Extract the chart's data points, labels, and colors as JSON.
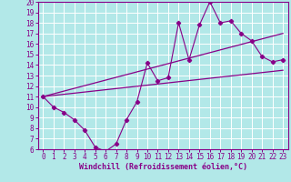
{
  "xlabel": "Windchill (Refroidissement éolien,°C)",
  "bg_color": "#b2e8e8",
  "grid_color": "#ffffff",
  "line_color": "#880088",
  "xlim": [
    -0.5,
    23.5
  ],
  "ylim": [
    6,
    20
  ],
  "xticks": [
    0,
    1,
    2,
    3,
    4,
    5,
    6,
    7,
    8,
    9,
    10,
    11,
    12,
    13,
    14,
    15,
    16,
    17,
    18,
    19,
    20,
    21,
    22,
    23
  ],
  "yticks": [
    6,
    7,
    8,
    9,
    10,
    11,
    12,
    13,
    14,
    15,
    16,
    17,
    18,
    19,
    20
  ],
  "series1_x": [
    0,
    1,
    2,
    3,
    4,
    5,
    6,
    7,
    8,
    9,
    10,
    11,
    12,
    13,
    14,
    15,
    16,
    17,
    18,
    19,
    20,
    21,
    22,
    23
  ],
  "series1_y": [
    11.0,
    10.0,
    9.5,
    8.8,
    7.8,
    6.2,
    5.8,
    6.5,
    8.8,
    10.5,
    14.2,
    12.5,
    12.8,
    18.0,
    14.5,
    17.8,
    20.0,
    18.0,
    18.2,
    17.0,
    16.3,
    14.8,
    14.3,
    14.5
  ],
  "series2_x": [
    0,
    23
  ],
  "series2_y": [
    11.0,
    17.0
  ],
  "series3_x": [
    0,
    23
  ],
  "series3_y": [
    11.0,
    13.5
  ],
  "tick_fontsize": 5.5,
  "xlabel_fontsize": 6.0
}
